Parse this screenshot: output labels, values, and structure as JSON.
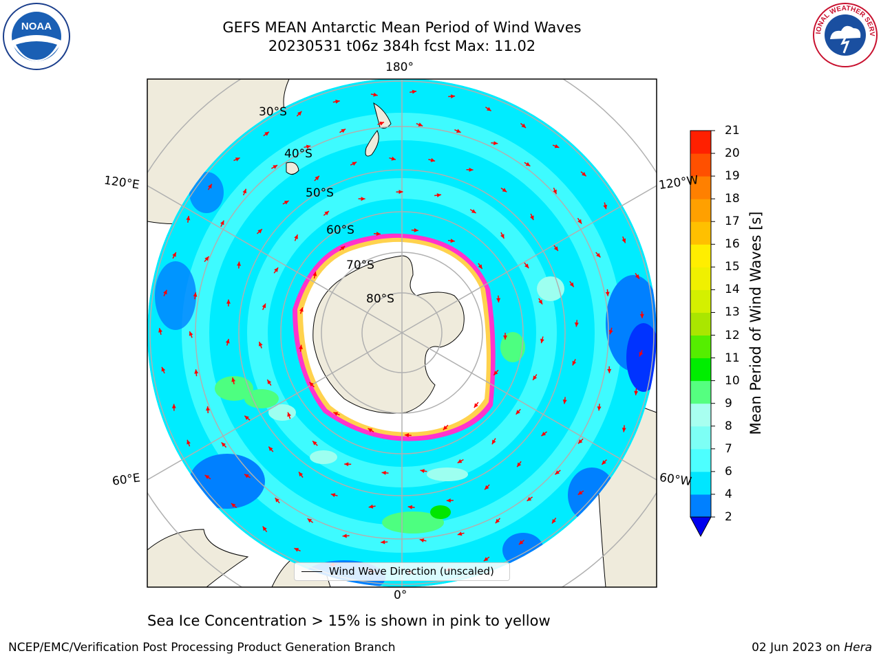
{
  "title": {
    "line1": "GEFS MEAN Antarctic Mean Period of Wind Waves",
    "line2": "20230531 t06z 384h fcst   Max: 11.02"
  },
  "logos": {
    "left": {
      "name": "noaa-logo",
      "text": "NOAA"
    },
    "right": {
      "name": "national-weather-service-logo",
      "text": "NATIONAL WEATHER SERVICE"
    }
  },
  "map": {
    "projection": "south-polar-stereographic",
    "longitude_labels": {
      "top": "180°",
      "bottom": "0°",
      "left_upper": "120°E",
      "left_lower": "60°E",
      "right_upper": "120°W",
      "right_lower": "60°W"
    },
    "latitude_labels": [
      "30°S",
      "40°S",
      "50°S",
      "60°S",
      "70°S",
      "80°S"
    ],
    "colors": {
      "land": "#efebdc",
      "ice_free_ocean_outside": "#ffffff",
      "sea_ice": "#ffffff",
      "ice_edge_pink": "#ff33cc",
      "ice_edge_yellow": "#ffd24d",
      "wave_2_4": "#0080ff",
      "wave_4_6": "#00ecff",
      "wave_6_8": "#4dffff",
      "wave_8_9": "#9dfff0",
      "wave_9_10": "#4dff80",
      "wave_10_11": "#00e600",
      "deep_blue": "#0033ff",
      "arrow": "#ff0000",
      "grid": "#b0b0b0"
    }
  },
  "colorbar": {
    "label": "Mean Period of Wind Waves [s]",
    "ticks": [
      "2",
      "4",
      "6",
      "7",
      "8",
      "9",
      "10",
      "11",
      "12",
      "13",
      "14",
      "15",
      "16",
      "17",
      "18",
      "19",
      "20",
      "21"
    ],
    "colors": [
      "#0080ff",
      "#00e6ff",
      "#4dffff",
      "#7dfff5",
      "#a8fff0",
      "#55ff80",
      "#00ee00",
      "#55ee00",
      "#aae600",
      "#d4f000",
      "#f0f000",
      "#ffee00",
      "#ffc000",
      "#ffa000",
      "#ff8000",
      "#ff5000",
      "#ff2000"
    ],
    "extend_color": "#0000ee"
  },
  "legend": {
    "label": "Wind Wave Direction (unscaled)"
  },
  "subtitle": "Sea Ice Concentration > 15% is shown in pink to yellow",
  "footer": {
    "left": "NCEP/EMC/Verification Post Processing Product Generation Branch",
    "right_date": "02 Jun 2023 on ",
    "right_host": "Hera"
  }
}
